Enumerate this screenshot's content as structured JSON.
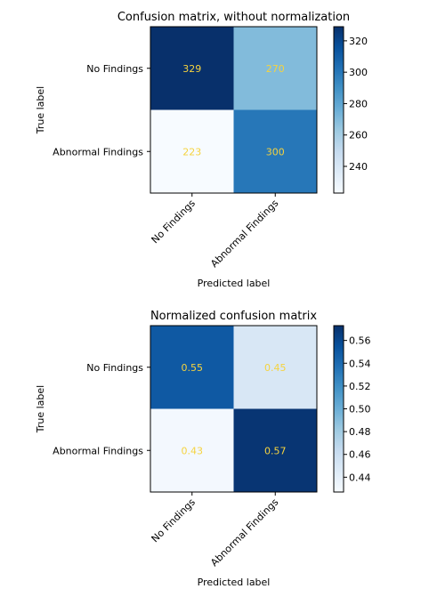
{
  "chart_data": [
    {
      "type": "heatmap",
      "title": "Confusion matrix, without normalization",
      "xlabel": "Predicted label",
      "ylabel": "True label",
      "x_categories": [
        "No Findings",
        "Abnormal Findings"
      ],
      "y_categories": [
        "No Findings",
        "Abnormal Findings"
      ],
      "values": [
        [
          329,
          270
        ],
        [
          223,
          300
        ]
      ],
      "cell_labels": [
        [
          "329",
          "270"
        ],
        [
          "223",
          "300"
        ]
      ],
      "value_range": [
        223,
        329
      ],
      "colorbar_ticks": [
        240,
        260,
        280,
        300,
        320
      ],
      "colorbar_tick_labels": [
        "240",
        "260",
        "280",
        "300",
        "320"
      ],
      "colormap": "Blues",
      "cell_text_color": "#f5d33f",
      "grid": false
    },
    {
      "type": "heatmap",
      "title": "Normalized confusion matrix",
      "xlabel": "Predicted label",
      "ylabel": "True label",
      "x_categories": [
        "No Findings",
        "Abnormal Findings"
      ],
      "y_categories": [
        "No Findings",
        "Abnormal Findings"
      ],
      "values": [
        [
          0.55,
          0.45
        ],
        [
          0.43,
          0.57
        ]
      ],
      "cell_labels": [
        [
          "0.55",
          "0.45"
        ],
        [
          "0.43",
          "0.57"
        ]
      ],
      "value_range": [
        0.427,
        0.573
      ],
      "colorbar_ticks": [
        0.44,
        0.46,
        0.48,
        0.5,
        0.52,
        0.54,
        0.56
      ],
      "colorbar_tick_labels": [
        "0.44",
        "0.46",
        "0.48",
        "0.50",
        "0.52",
        "0.54",
        "0.56"
      ],
      "colormap": "Blues",
      "cell_text_color": "#f5d33f",
      "grid": false
    }
  ]
}
